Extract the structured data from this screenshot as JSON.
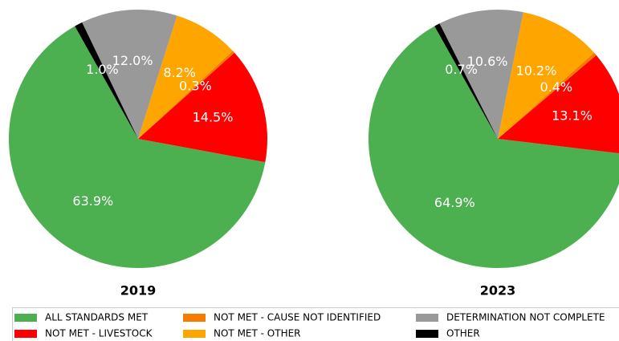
{
  "chart_data": [
    {
      "type": "pie",
      "title": "2019",
      "categories": [
        "ALL STANDARDS MET",
        "NOT MET - LIVESTOCK",
        "NOT MET - CAUSE NOT IDENTIFIED",
        "NOT MET - OTHER",
        "DETERMINATION NOT COMPLETE",
        "OTHER"
      ],
      "values": [
        63.9,
        14.5,
        0.3,
        8.2,
        12.0,
        1.0
      ],
      "value_labels": [
        "63.9%",
        "14.5%",
        "0.3%",
        "8.2%",
        "12.0%",
        "1.0%"
      ],
      "colors": [
        "#4caf50",
        "#ff0000",
        "#f57c00",
        "#ffa500",
        "#999999",
        "#000000"
      ]
    },
    {
      "type": "pie",
      "title": "2023",
      "categories": [
        "ALL STANDARDS MET",
        "NOT MET - LIVESTOCK",
        "NOT MET - CAUSE NOT IDENTIFIED",
        "NOT MET - OTHER",
        "DETERMINATION NOT COMPLETE",
        "OTHER"
      ],
      "values": [
        64.9,
        13.1,
        0.4,
        10.2,
        10.6,
        0.7
      ],
      "value_labels": [
        "64.9%",
        "13.1%",
        "0.4%",
        "10.2%",
        "10.6%",
        "0.7%"
      ],
      "colors": [
        "#4caf50",
        "#ff0000",
        "#f57c00",
        "#ffa500",
        "#999999",
        "#000000"
      ]
    }
  ]
}
